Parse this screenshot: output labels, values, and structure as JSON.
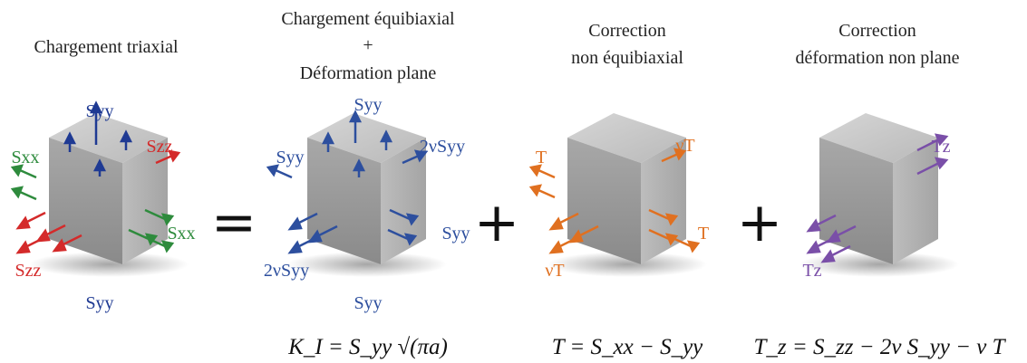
{
  "columns": [
    {
      "id": "triaxial",
      "title_lines": [
        "Chargement triaxial"
      ]
    },
    {
      "id": "equibiaxial",
      "title_lines": [
        "Chargement équibiaxial",
        "+",
        "Déformation plane"
      ]
    },
    {
      "id": "non-equibiaxial",
      "title_lines": [
        "Correction",
        "non équibiaxial"
      ]
    },
    {
      "id": "non-plane",
      "title_lines": [
        "Correction",
        "déformation non plane"
      ]
    }
  ],
  "operators": [
    "=",
    "+",
    "+"
  ],
  "labels": {
    "triaxial": {
      "top": "Syy",
      "bottom": "Syy",
      "left_top": "Sxx",
      "right_bottom": "Sxx",
      "right_top": "Szz",
      "left_bottom": "Szz"
    },
    "equibiaxial": {
      "top": "Syy",
      "bottom": "Syy",
      "left_top": "Syy",
      "right_bottom": "Syy",
      "right_top": "2νSyy",
      "left_bottom": "2νSyy"
    },
    "non_equibiaxial": {
      "left_top": "T",
      "right_bottom": "T",
      "right_top": "νT",
      "left_bottom": "νT"
    },
    "non_plane": {
      "right_top": "Tz",
      "left_bottom": "Tz"
    }
  },
  "equations": {
    "equibiaxial": "K_I = S_yy √(πa)",
    "non_equibiaxial": "T = S_xx − S_yy",
    "non_plane": "T_z = S_zz − 2ν S_yy − ν T"
  },
  "colors": {
    "syy": "#1f3a93",
    "sxx": "#2e8b3d",
    "szz": "#d42a2a",
    "equibiaxial": "#2d4f9e",
    "t_correction": "#e07020",
    "tz_correction": "#7a4fa8",
    "cube_top": "#c9c9c9",
    "cube_left": "#9b9b9b",
    "cube_right": "#b4b4b4"
  }
}
